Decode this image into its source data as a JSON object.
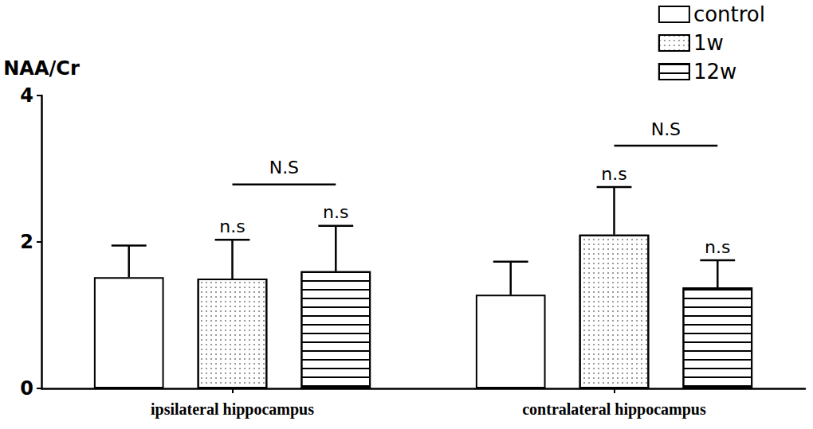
{
  "chart_data": {
    "type": "bar",
    "y_label": "NAA/Cr",
    "categories": [
      "ipsilateral hippocampus",
      "contralateral hippocampus"
    ],
    "series": [
      {
        "name": "control",
        "color": "#ffffff",
        "values": [
          1.52,
          1.28
        ],
        "errors": [
          0.43,
          0.45
        ]
      },
      {
        "name": "1w",
        "color": "#ffffff",
        "values": [
          1.5,
          2.1
        ],
        "errors": [
          0.53,
          0.65
        ]
      },
      {
        "name": "12w",
        "color": "#ffffff",
        "values": [
          1.6,
          1.38
        ],
        "errors": [
          0.62,
          0.37
        ]
      }
    ],
    "annotations": [
      {
        "text": "n.s",
        "category": "ipsilateral hippocampus",
        "series": "1w"
      },
      {
        "text": "n.s",
        "category": "ipsilateral hippocampus",
        "series": "12w"
      },
      {
        "text": "n.s",
        "category": "contralateral hippocampus",
        "series": "1w"
      },
      {
        "text": "n.s",
        "category": "contralateral hippocampus",
        "series": "12w"
      }
    ],
    "comparisons": [
      {
        "text": "N.S",
        "category": "ipsilateral hippocampus",
        "from": "1w",
        "to": "12w"
      },
      {
        "text": "N.S",
        "category": "contralateral hippocampus",
        "from": "1w",
        "to": "12w"
      }
    ],
    "ylim": [
      0,
      4
    ],
    "yticks": [
      0,
      2,
      4
    ],
    "grid": false,
    "legend": "upper right"
  }
}
